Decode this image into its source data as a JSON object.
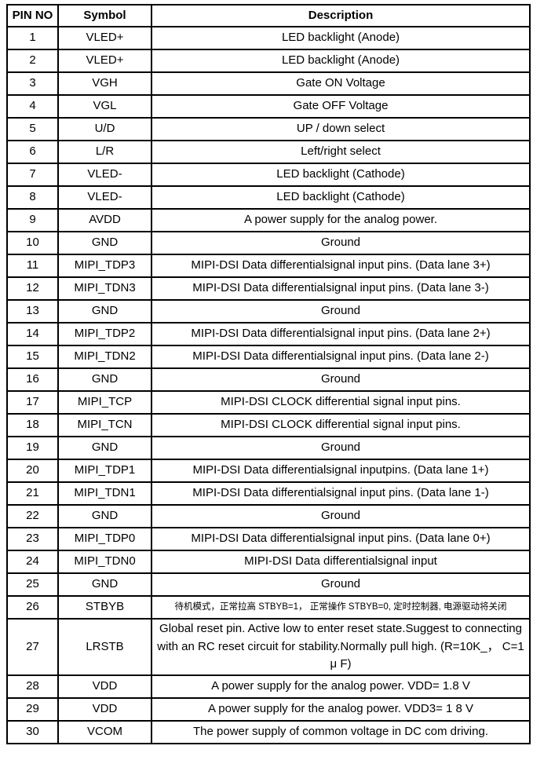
{
  "table": {
    "headers": [
      "PIN NO",
      "Symbol",
      "Description"
    ],
    "rows": [
      {
        "pin": "1",
        "symbol": "VLED+",
        "desc": "LED backlight (Anode)"
      },
      {
        "pin": "2",
        "symbol": "VLED+",
        "desc": "LED backlight (Anode)"
      },
      {
        "pin": "3",
        "symbol": "VGH",
        "desc": "Gate ON Voltage"
      },
      {
        "pin": "4",
        "symbol": "VGL",
        "desc": "Gate OFF Voltage"
      },
      {
        "pin": "5",
        "symbol": "U/D",
        "desc": "UP / down select"
      },
      {
        "pin": "6",
        "symbol": "L/R",
        "desc": "Left/right select"
      },
      {
        "pin": "7",
        "symbol": "VLED-",
        "desc": "LED backlight (Cathode)"
      },
      {
        "pin": "8",
        "symbol": "VLED-",
        "desc": "LED backlight (Cathode)"
      },
      {
        "pin": "9",
        "symbol": "AVDD",
        "desc": "A power supply for the analog power."
      },
      {
        "pin": "10",
        "symbol": "GND",
        "desc": "Ground"
      },
      {
        "pin": "11",
        "symbol": "MIPI_TDP3",
        "desc": "MIPI-DSI Data differentialsignal input pins. (Data lane 3+)"
      },
      {
        "pin": "12",
        "symbol": "MIPI_TDN3",
        "desc": "MIPI-DSI Data differentialsignal input pins. (Data lane 3-)"
      },
      {
        "pin": "13",
        "symbol": "GND",
        "desc": "Ground"
      },
      {
        "pin": "14",
        "symbol": "MIPI_TDP2",
        "desc": "MIPI-DSI Data differentialsignal input pins. (Data lane 2+)"
      },
      {
        "pin": "15",
        "symbol": "MIPI_TDN2",
        "desc": "MIPI-DSI Data differentialsignal input pins. (Data lane 2-)"
      },
      {
        "pin": "16",
        "symbol": "GND",
        "desc": "Ground"
      },
      {
        "pin": "17",
        "symbol": "MIPI_TCP",
        "desc": "MIPI-DSI CLOCK differential signal input pins."
      },
      {
        "pin": "18",
        "symbol": "MIPI_TCN",
        "desc": "MIPI-DSI CLOCK differential signal input pins."
      },
      {
        "pin": "19",
        "symbol": "GND",
        "desc": "Ground"
      },
      {
        "pin": "20",
        "symbol": "MIPI_TDP1",
        "desc": "MIPI-DSI Data differentialsignal inputpins. (Data lane 1+)"
      },
      {
        "pin": "21",
        "symbol": "MIPI_TDN1",
        "desc": "MIPI-DSI Data differentialsignal input pins. (Data lane 1-)"
      },
      {
        "pin": "22",
        "symbol": "GND",
        "desc": "Ground"
      },
      {
        "pin": "23",
        "symbol": "MIPI_TDP0",
        "desc": "MIPI-DSI Data differentialsignal input pins. (Data lane 0+)"
      },
      {
        "pin": "24",
        "symbol": "MIPI_TDN0",
        "desc": "MIPI-DSI Data differentialsignal input"
      },
      {
        "pin": "25",
        "symbol": "GND",
        "desc": "Ground"
      },
      {
        "pin": "26",
        "symbol": "STBYB",
        "desc": "待机模式，正常拉高 STBYB=1， 正常操作 STBYB=0, 定时控制器, 电源驱动将关闭",
        "small": true
      },
      {
        "pin": "27",
        "symbol": "LRSTB",
        "desc": "Global reset pin. Active low to enter reset state.Suggest to connecting with an RC reset circuit for stability.Normally pull high. (R=10K_， C=1 μ F)"
      },
      {
        "pin": "28",
        "symbol": "VDD",
        "desc": "A power supply for the analog power. VDD= 1.8 V"
      },
      {
        "pin": "29",
        "symbol": "VDD",
        "desc": "A power supply for the analog power. VDD3= 1 8 V"
      },
      {
        "pin": "30",
        "symbol": "VCOM",
        "desc": "The power supply of common voltage in DC com driving."
      }
    ]
  },
  "colors": {
    "border": "#000000",
    "text": "#000000",
    "background": "#ffffff"
  }
}
